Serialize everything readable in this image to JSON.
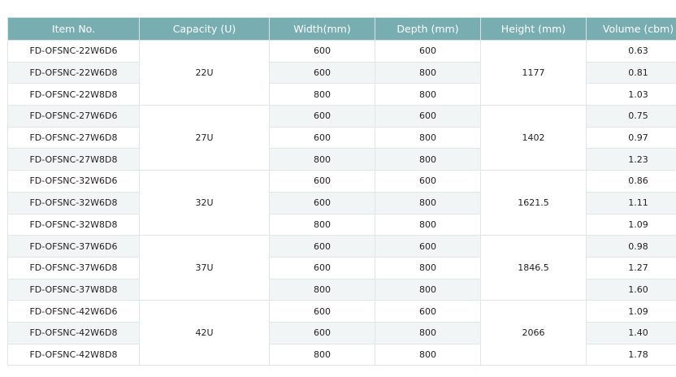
{
  "table": {
    "headers": [
      "Item No.",
      "Capacity (U)",
      "Width(mm)",
      "Depth (mm)",
      "Height (mm)",
      "Volume (cbm)"
    ],
    "groups": [
      {
        "capacity": "22U",
        "height": "1177",
        "rows": [
          {
            "item": "FD-OFSNC-22W6D6",
            "width": "600",
            "depth": "600",
            "volume": "0.63"
          },
          {
            "item": "FD-OFSNC-22W6D8",
            "width": "600",
            "depth": "800",
            "volume": "0.81"
          },
          {
            "item": "FD-OFSNC-22W8D8",
            "width": "800",
            "depth": "800",
            "volume": "1.03"
          }
        ]
      },
      {
        "capacity": "27U",
        "height": "1402",
        "rows": [
          {
            "item": "FD-OFSNC-27W6D6",
            "width": "600",
            "depth": "600",
            "volume": "0.75"
          },
          {
            "item": "FD-OFSNC-27W6D8",
            "width": "600",
            "depth": "800",
            "volume": "0.97"
          },
          {
            "item": "FD-OFSNC-27W8D8",
            "width": "800",
            "depth": "800",
            "volume": "1.23"
          }
        ]
      },
      {
        "capacity": "32U",
        "height": "1621.5",
        "rows": [
          {
            "item": "FD-OFSNC-32W6D6",
            "width": "600",
            "depth": "600",
            "volume": "0.86"
          },
          {
            "item": "FD-OFSNC-32W6D8",
            "width": "600",
            "depth": "800",
            "volume": "1.11"
          },
          {
            "item": "FD-OFSNC-32W8D8",
            "width": "800",
            "depth": "800",
            "volume": "1.09"
          }
        ]
      },
      {
        "capacity": "37U",
        "height": "1846.5",
        "rows": [
          {
            "item": "FD-OFSNC-37W6D6",
            "width": "600",
            "depth": "600",
            "volume": "0.98"
          },
          {
            "item": "FD-OFSNC-37W6D8",
            "width": "600",
            "depth": "800",
            "volume": "1.27"
          },
          {
            "item": "FD-OFSNC-37W8D8",
            "width": "800",
            "depth": "800",
            "volume": "1.60"
          }
        ]
      },
      {
        "capacity": "42U",
        "height": "2066",
        "rows": [
          {
            "item": "FD-OFSNC-42W6D6",
            "width": "600",
            "depth": "600",
            "volume": "1.09"
          },
          {
            "item": "FD-OFSNC-42W6D8",
            "width": "600",
            "depth": "800",
            "volume": "1.40"
          },
          {
            "item": "FD-OFSNC-42W8D8",
            "width": "800",
            "depth": "800",
            "volume": "1.78"
          }
        ]
      }
    ]
  },
  "colors": {
    "header_background": "#78aeb2",
    "header_text": "#ffffff",
    "stripe_background": "#f2f5f5"
  }
}
